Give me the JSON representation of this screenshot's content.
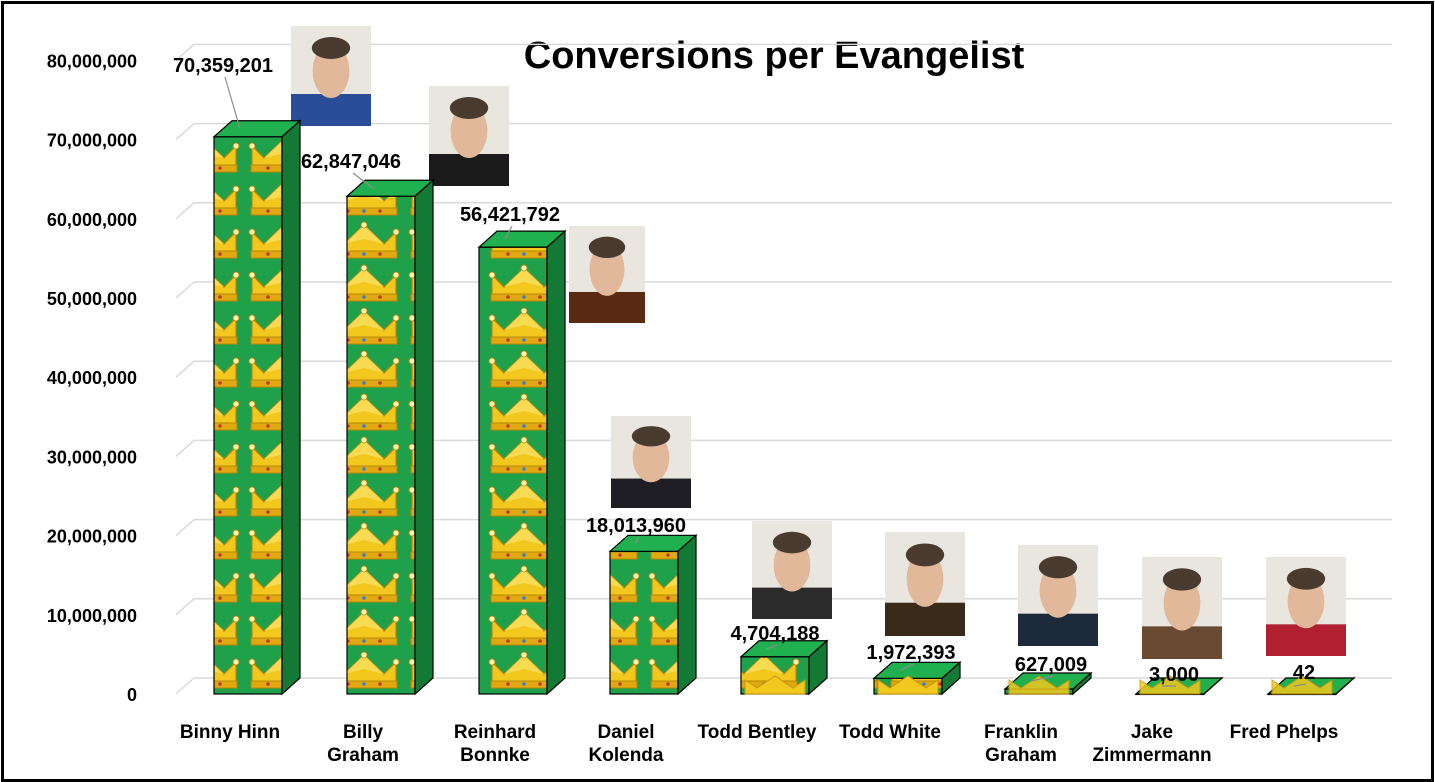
{
  "chart_data": {
    "type": "bar",
    "title": "Conversions per Evangelist",
    "xlabel": "",
    "ylabel": "",
    "ylim": [
      0,
      80000000
    ],
    "yticks": [
      0,
      10000000,
      20000000,
      30000000,
      40000000,
      50000000,
      60000000,
      70000000,
      80000000
    ],
    "ytick_labels": [
      "0",
      "10,000,000",
      "20,000,000",
      "30,000,000",
      "40,000,000",
      "50,000,000",
      "60,000,000",
      "70,000,000",
      "80,000,000"
    ],
    "grid": true,
    "legend": "none",
    "categories": [
      [
        "Binny Hinn"
      ],
      [
        "Billy",
        "Graham"
      ],
      [
        "Reinhard",
        "Bonnke"
      ],
      [
        "Daniel",
        "Kolenda"
      ],
      [
        "Todd Bentley"
      ],
      [
        "Todd White"
      ],
      [
        "Franklin",
        "Graham"
      ],
      [
        "Jake",
        "Zimmermann"
      ],
      [
        "Fred Phelps"
      ]
    ],
    "values": [
      70359201,
      62847046,
      56421792,
      18013960,
      4704188,
      1972393,
      627009,
      3000,
      42
    ],
    "data_labels": [
      "70,359,201",
      "62,847,046",
      "56,421,792",
      "18,013,960",
      "4,704,188",
      "1,972,393",
      "627,009",
      "3,000",
      "42"
    ],
    "colors": {
      "bar_front": "#1fa04a",
      "bar_top": "#21b050",
      "bar_side": "#137a36",
      "crown": "#f2c81e",
      "crown_shade": "#c9970a",
      "grid": "#d9d9d9"
    }
  }
}
